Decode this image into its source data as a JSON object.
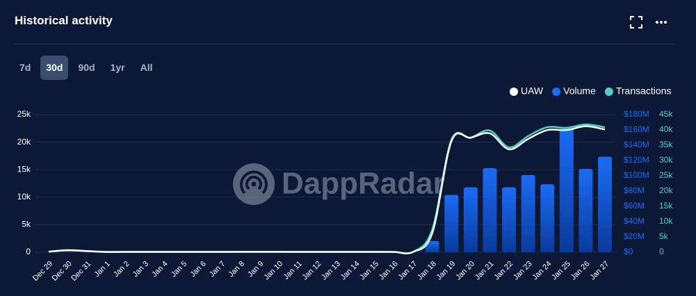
{
  "header": {
    "title": "Historical activity"
  },
  "tabs": [
    "7d",
    "30d",
    "90d",
    "1yr",
    "All"
  ],
  "watermark": "DappRadar",
  "chart_data": {
    "type": "bar-line",
    "categories": [
      "Dec 29",
      "Dec 30",
      "Dec 31",
      "Jan 1",
      "Jan 2",
      "Jan 3",
      "Jan 4",
      "Jan 5",
      "Jan 6",
      "Jan 7",
      "Jan 8",
      "Jan 9",
      "Jan 10",
      "Jan 11",
      "Jan 12",
      "Jan 13",
      "Jan 14",
      "Jan 15",
      "Jan 16",
      "Jan 17",
      "Jan 18",
      "Jan 19",
      "Jan 20",
      "Jan 21",
      "Jan 22",
      "Jan 23",
      "Jan 24",
      "Jan 25",
      "Jan 26",
      "Jan 27"
    ],
    "series": [
      {
        "name": "UAW",
        "color": "#ffffff",
        "kind": "line",
        "axis": "y",
        "values": [
          100,
          350,
          200,
          50,
          60,
          60,
          60,
          60,
          60,
          60,
          70,
          70,
          70,
          60,
          60,
          60,
          60,
          60,
          50,
          60,
          3500,
          20200,
          20800,
          21600,
          18700,
          20600,
          22200,
          22200,
          22900,
          22300
        ]
      },
      {
        "name": "Volume",
        "color": "#1a6cf5",
        "kind": "bar",
        "axis": "y2",
        "values": [
          0,
          0,
          0,
          0,
          0,
          0,
          0,
          0,
          0,
          0,
          0,
          0,
          0,
          0,
          0,
          0,
          0,
          0,
          0,
          0,
          14500000,
          75000000,
          85000000,
          110000000,
          85000000,
          101000000,
          89000000,
          162000000,
          109000000,
          125000000
        ]
      },
      {
        "name": "Transactions",
        "color": "#4fd1c5",
        "kind": "line",
        "axis": "y3",
        "values": [
          200,
          700,
          400,
          100,
          120,
          120,
          120,
          120,
          120,
          120,
          130,
          130,
          130,
          120,
          120,
          120,
          120,
          120,
          100,
          120,
          7500,
          36800,
          37500,
          39800,
          34300,
          38000,
          40900,
          40700,
          41800,
          40900
        ]
      }
    ],
    "ylim": [
      0,
      25000
    ],
    "yticks": [
      0,
      {
        "value": 5000,
        "label": "5k"
      },
      {
        "value": 10000,
        "label": "10k"
      },
      {
        "value": 15000,
        "label": "15k"
      },
      {
        "value": 20000,
        "label": "20k"
      },
      {
        "value": 25000,
        "label": "25k"
      }
    ],
    "y2lim": [
      0,
      180000000
    ],
    "y2ticks": [
      {
        "value": 0,
        "label": "$0"
      },
      {
        "value": 20000000,
        "label": "$20M"
      },
      {
        "value": 40000000,
        "label": "$40M"
      },
      {
        "value": 60000000,
        "label": "$60M"
      },
      {
        "value": 80000000,
        "label": "$80M"
      },
      {
        "value": 100000000,
        "label": "$100M"
      },
      {
        "value": 120000000,
        "label": "$120M"
      },
      {
        "value": 140000000,
        "label": "$140M"
      },
      {
        "value": 160000000,
        "label": "$160M"
      },
      {
        "value": 180000000,
        "label": "$180M"
      }
    ],
    "y3lim": [
      0,
      45000
    ],
    "y3ticks": [
      0,
      {
        "value": 5000,
        "label": "5k"
      },
      {
        "value": 10000,
        "label": "10k"
      },
      {
        "value": 15000,
        "label": "15k"
      },
      {
        "value": 20000,
        "label": "20k"
      },
      {
        "value": 25000,
        "label": "25k"
      },
      {
        "value": 30000,
        "label": "30k"
      },
      {
        "value": 35000,
        "label": "35k"
      },
      {
        "value": 40000,
        "label": "40k"
      },
      {
        "value": 45000,
        "label": "45k"
      }
    ],
    "grid": true,
    "legend": "top-right"
  }
}
